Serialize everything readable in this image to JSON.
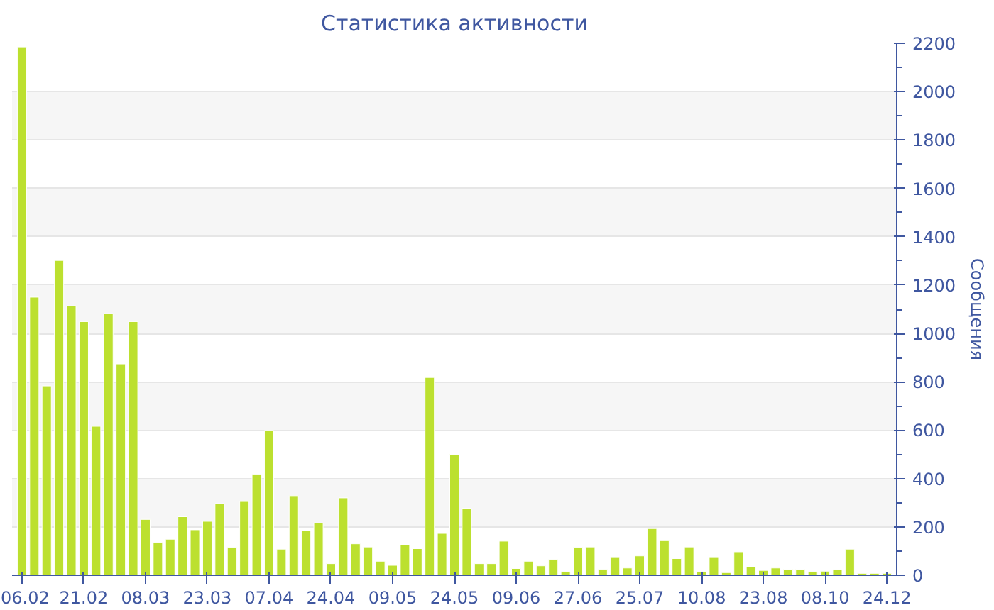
{
  "chart_data": {
    "type": "bar",
    "title": "Статистика активности",
    "ylabel": "Сообщения",
    "categories": [
      "06.02",
      null,
      null,
      null,
      null,
      "21.02",
      null,
      null,
      null,
      null,
      "08.03",
      null,
      null,
      null,
      null,
      "23.03",
      null,
      null,
      null,
      null,
      "07.04",
      null,
      null,
      null,
      null,
      "24.04",
      null,
      null,
      null,
      null,
      "09.05",
      null,
      null,
      null,
      null,
      "24.05",
      null,
      null,
      null,
      null,
      "09.06",
      null,
      null,
      null,
      null,
      "27.06",
      null,
      null,
      null,
      null,
      "25.07",
      null,
      null,
      null,
      null,
      "10.08",
      null,
      null,
      null,
      null,
      "23.08",
      null,
      null,
      null,
      null,
      "08.10",
      null,
      null,
      null,
      null,
      "24.12"
    ],
    "values": [
      2185,
      1150,
      783,
      1302,
      1114,
      1049,
      616,
      1082,
      874,
      1049,
      231,
      136,
      149,
      242,
      188,
      223,
      296,
      115,
      305,
      417,
      599,
      108,
      329,
      184,
      216,
      48,
      320,
      130,
      117,
      58,
      41,
      125,
      110,
      818,
      173,
      500,
      277,
      48,
      48,
      141,
      28,
      58,
      39,
      65,
      15,
      115,
      117,
      24,
      76,
      30,
      80,
      193,
      143,
      69,
      117,
      15,
      76,
      11,
      97,
      35,
      20,
      30,
      25,
      25,
      15,
      17,
      25,
      108,
      8,
      8,
      8
    ],
    "color": "#bce02f",
    "ylim": [
      0,
      2200
    ],
    "yticks": [
      0,
      200,
      400,
      600,
      800,
      1000,
      1200,
      1400,
      1600,
      1800,
      2000,
      2200
    ],
    "grid": "y"
  }
}
